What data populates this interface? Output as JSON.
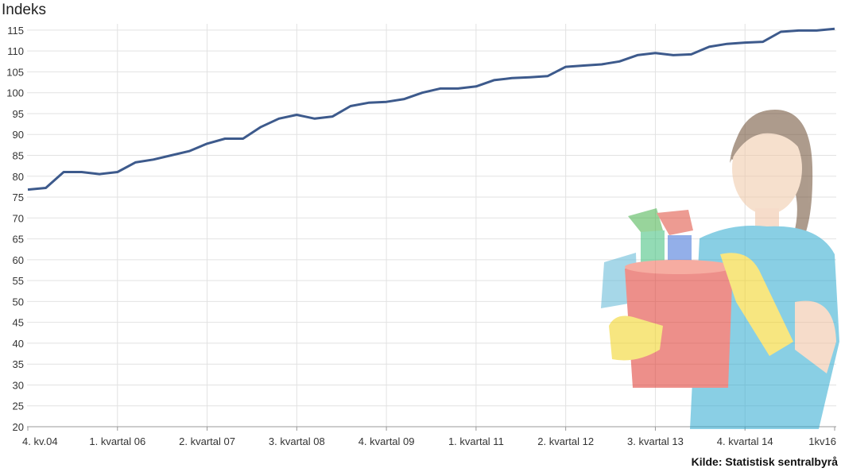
{
  "chart_data": {
    "type": "line",
    "ylabel": "Indeks",
    "source": "Kilde: Statistisk sentralbyrå",
    "ylim": [
      20,
      115
    ],
    "yticks": [
      20,
      25,
      30,
      35,
      40,
      45,
      50,
      55,
      60,
      65,
      70,
      75,
      80,
      85,
      90,
      95,
      100,
      105,
      110,
      115
    ],
    "x_tick_labels": [
      "4. kv.04",
      "1. kvartal 06",
      "2. kvartal 07",
      "3. kvartal 08",
      "4. kvartal 09",
      "1. kvartal 11",
      "2. kvartal 12",
      "3. kvartal 13",
      "4. kvartal 14",
      "1kv16"
    ],
    "grid": true,
    "colors": {
      "line": "#3d5a8c",
      "grid": "#e2e2e2",
      "axis": "#999999"
    },
    "series": [
      {
        "name": "",
        "x": [
          "4. kv.04",
          "1. kv.05",
          "2. kv.05",
          "3. kv.05",
          "4. kv.05",
          "1. kvartal 06",
          "2. kv.06",
          "3. kv.06",
          "4. kv.06",
          "1. kv.07",
          "2. kvartal 07",
          "3. kv.07",
          "4. kv.07",
          "1. kv.08",
          "2. kv.08",
          "3. kvartal 08",
          "4. kv.08",
          "1. kv.09",
          "2. kv.09",
          "3. kv.09",
          "4. kvartal 09",
          "1. kv.10",
          "2. kv.10",
          "3. kv.10",
          "4. kv.10",
          "1. kvartal 11",
          "2. kv.11",
          "3. kv.11",
          "4. kv.11",
          "1. kv.12",
          "2. kvartal 12",
          "3. kv.12",
          "4. kv.12",
          "1. kv.13",
          "2. kv.13",
          "3. kvartal 13",
          "4. kv.13",
          "1. kv.14",
          "2. kv.14",
          "3. kv.14",
          "4. kvartal 14",
          "1. kv.15",
          "2. kv.15",
          "3. kv.15",
          "4. kv.15",
          "1kv16"
        ],
        "values": [
          76.8,
          77.2,
          81.0,
          81.0,
          80.5,
          81.0,
          83.3,
          84.0,
          85.0,
          86.0,
          87.8,
          89.0,
          89.0,
          91.8,
          93.8,
          94.7,
          93.8,
          94.3,
          96.8,
          97.6,
          97.8,
          98.5,
          100.0,
          101.0,
          101.0,
          101.5,
          103.0,
          103.5,
          103.7,
          104.0,
          106.2,
          106.5,
          106.8,
          107.5,
          109.0,
          109.5,
          109.0,
          109.2,
          111.0,
          111.7,
          112.0,
          112.2,
          114.6,
          114.9,
          114.9,
          115.3
        ]
      }
    ]
  }
}
